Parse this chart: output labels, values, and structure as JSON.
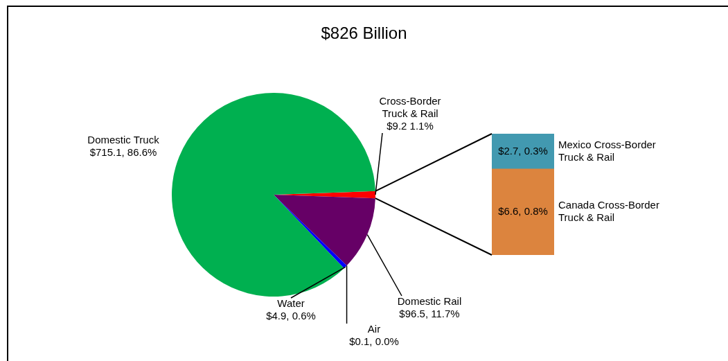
{
  "chart_data": [
    {
      "type": "pie",
      "title": "$826 Billion",
      "categories": [
        "Cross-Border Truck & Rail",
        "Domestic Rail",
        "Air",
        "Water",
        "Domestic Truck"
      ],
      "values": [
        9.2,
        96.5,
        0.1,
        4.9,
        715.1
      ],
      "colors": [
        "#ff0000",
        "#660066",
        "#333399",
        "#0000ff",
        "#00b050"
      ],
      "value_labels": [
        "$9.2 1.1%",
        "$96.5, 11.7%",
        "$0.1, 0.0%",
        "$4.9, 0.6%",
        "$715.1, 86.6%"
      ]
    },
    {
      "type": "bar",
      "stacked": true,
      "categories": [
        null
      ],
      "tick_labels": false,
      "series": [
        {
          "name": "Canada Cross-Border Truck & Rail",
          "color": "#dc843e",
          "values": [
            6.6
          ],
          "value_labels": [
            "$6.6, 0.8%"
          ]
        },
        {
          "name": "Mexico Cross-Border Truck & Rail",
          "color": "#4299b0",
          "values": [
            2.7
          ],
          "value_labels": [
            "$2.7, 0.3%"
          ]
        }
      ]
    }
  ]
}
